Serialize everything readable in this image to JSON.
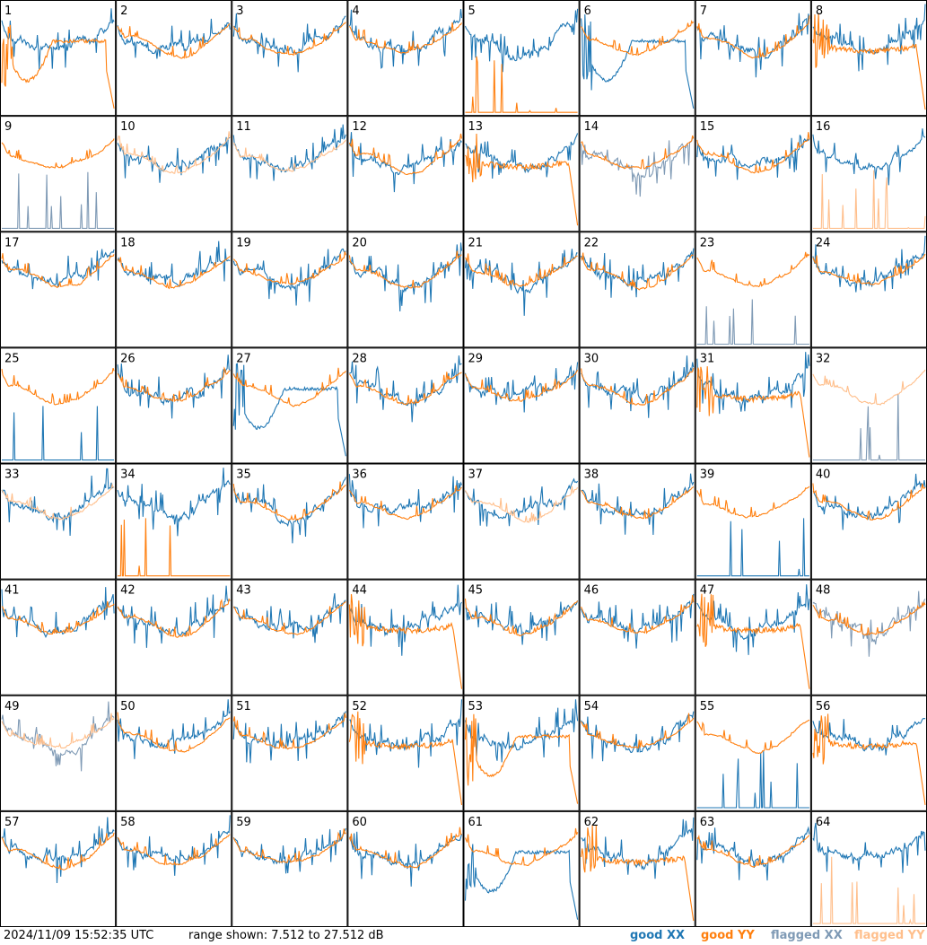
{
  "chart_data": {
    "type": "line",
    "description_units": "dB",
    "panels": [
      "1",
      "2",
      "3",
      "4",
      "5",
      "6",
      "7",
      "8",
      "9",
      "10",
      "11",
      "12",
      "13",
      "14",
      "15",
      "16",
      "17",
      "18",
      "19",
      "20",
      "21",
      "22",
      "23",
      "24",
      "25",
      "26",
      "27",
      "28",
      "29",
      "30",
      "31",
      "32",
      "33",
      "34",
      "35",
      "36",
      "37",
      "38",
      "39",
      "40",
      "41",
      "42",
      "43",
      "44",
      "45",
      "46",
      "47",
      "48",
      "49",
      "50",
      "51",
      "52",
      "53",
      "54",
      "55",
      "56",
      "57",
      "58",
      "59",
      "60",
      "61",
      "62",
      "63",
      "64"
    ],
    "grid": {
      "rows": 8,
      "cols": 8
    },
    "ylim": [
      7.512,
      27.512
    ],
    "series": [
      {
        "name": "good XX",
        "color": "#1f77b4"
      },
      {
        "name": "good YY",
        "color": "#ff7f0e"
      },
      {
        "name": "flagged XX",
        "color": "#7f9ab5"
      },
      {
        "name": "flagged YY",
        "color": "#ffbf8c"
      }
    ],
    "panel_styles": {
      "1": {
        "xx": "good",
        "yy": "good",
        "yy_shape": "dip"
      },
      "5": {
        "xx": "good",
        "yy": "good",
        "yy_shape": "floor"
      },
      "6": {
        "xx": "good",
        "yy": "good",
        "xx_shape": "dip"
      },
      "8": {
        "xx": "good",
        "yy": "good",
        "yy_shape": "flat"
      },
      "9": {
        "xx": "flagged",
        "yy": "good",
        "xx_shape": "floor"
      },
      "10": {
        "xx": "good",
        "yy": "flagged"
      },
      "11": {
        "xx": "good",
        "yy": "flagged"
      },
      "13": {
        "xx": "good",
        "yy": "good",
        "yy_shape": "flat"
      },
      "14": {
        "xx": "flagged",
        "yy": "good"
      },
      "16": {
        "xx": "good",
        "yy": "flagged",
        "yy_shape": "floor"
      },
      "23": {
        "xx": "flagged",
        "yy": "good",
        "xx_shape": "floor"
      },
      "25": {
        "xx": "good",
        "yy": "good",
        "xx_shape": "floor"
      },
      "27": {
        "xx": "good",
        "yy": "good",
        "xx_shape": "dip"
      },
      "31": {
        "xx": "good",
        "yy": "good",
        "yy_shape": "flat"
      },
      "32": {
        "xx": "flagged",
        "yy": "flagged",
        "xx_shape": "floor"
      },
      "33": {
        "xx": "good",
        "yy": "flagged"
      },
      "34": {
        "xx": "good",
        "yy": "good",
        "yy_shape": "floor"
      },
      "37": {
        "xx": "good",
        "yy": "flagged"
      },
      "39": {
        "xx": "good",
        "yy": "good",
        "xx_shape": "floor"
      },
      "44": {
        "xx": "good",
        "yy": "good",
        "yy_shape": "flat"
      },
      "47": {
        "xx": "good",
        "yy": "good",
        "yy_shape": "flat"
      },
      "48": {
        "xx": "flagged",
        "yy": "good"
      },
      "49": {
        "xx": "flagged",
        "yy": "flagged"
      },
      "52": {
        "xx": "good",
        "yy": "good",
        "yy_shape": "flat"
      },
      "53": {
        "xx": "good",
        "yy": "good",
        "yy_shape": "dip"
      },
      "55": {
        "xx": "good",
        "yy": "good",
        "xx_shape": "floor"
      },
      "56": {
        "xx": "good",
        "yy": "good",
        "yy_shape": "flat"
      },
      "61": {
        "xx": "good",
        "yy": "good",
        "xx_shape": "dip"
      },
      "62": {
        "xx": "good",
        "yy": "good",
        "yy_shape": "flat"
      },
      "64": {
        "xx": "good",
        "yy": "flagged",
        "yy_shape": "floor"
      }
    }
  },
  "footer": {
    "timestamp": "2024/11/09 15:52:35 UTC",
    "range": "range shown: 7.512 to 27.512 dB",
    "legend": {
      "good_xx": "good XX",
      "good_yy": "good YY",
      "flagged_xx": "flagged XX",
      "flagged_yy": "flagged YY"
    }
  }
}
